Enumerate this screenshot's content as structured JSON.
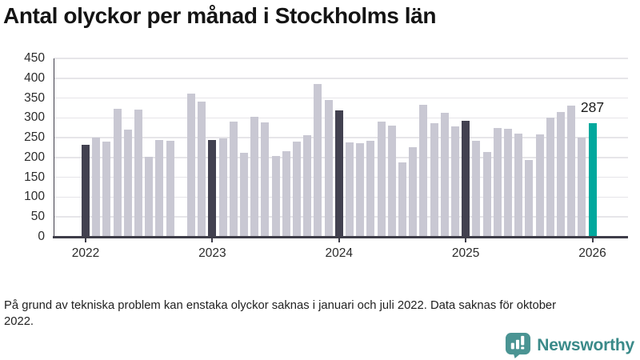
{
  "title": "Antal olyckor per månad i Stockholms län",
  "footnote": "På grund av tekniska problem kan enstaka olyckor saknas i januari och juli 2022. Data saknas för oktober 2022.",
  "branding": {
    "name": "Newsworthy",
    "icon": "newsworthy-bubble-chart-icon",
    "icon_color": "#4a9493",
    "text_color": "#3a8a89"
  },
  "chart_data": {
    "type": "bar",
    "title": "Antal olyckor per månad i Stockholms län",
    "xlabel": "",
    "ylabel": "",
    "ylim": [
      0,
      450
    ],
    "y_ticks": [
      0,
      50,
      100,
      150,
      200,
      250,
      300,
      350,
      400,
      450
    ],
    "x_tick_labels": [
      "2022",
      "2023",
      "2024",
      "2025",
      "2026"
    ],
    "grid": "horizontal",
    "legend": "none",
    "missing_months": [
      "2022-10"
    ],
    "annotation": {
      "text": "287",
      "month_index": 48
    },
    "colors": {
      "default": "#c9c8d3",
      "january": "#424150",
      "highlight": "#00a89d",
      "axis": "#3e3d49",
      "gridline": "#e6e5e9"
    },
    "months": [
      {
        "m": "2022-01",
        "v": 233,
        "role": "january"
      },
      {
        "m": "2022-02",
        "v": 250,
        "role": "default"
      },
      {
        "m": "2022-03",
        "v": 240,
        "role": "default"
      },
      {
        "m": "2022-04",
        "v": 322,
        "role": "default"
      },
      {
        "m": "2022-05",
        "v": 270,
        "role": "default"
      },
      {
        "m": "2022-06",
        "v": 320,
        "role": "default"
      },
      {
        "m": "2022-07",
        "v": 202,
        "role": "default"
      },
      {
        "m": "2022-08",
        "v": 244,
        "role": "default"
      },
      {
        "m": "2022-09",
        "v": 243,
        "role": "default"
      },
      {
        "m": "2022-10",
        "v": null,
        "role": "missing"
      },
      {
        "m": "2022-11",
        "v": 362,
        "role": "default"
      },
      {
        "m": "2022-12",
        "v": 341,
        "role": "default"
      },
      {
        "m": "2023-01",
        "v": 245,
        "role": "january"
      },
      {
        "m": "2023-02",
        "v": 249,
        "role": "default"
      },
      {
        "m": "2023-03",
        "v": 291,
        "role": "default"
      },
      {
        "m": "2023-04",
        "v": 212,
        "role": "default"
      },
      {
        "m": "2023-05",
        "v": 303,
        "role": "default"
      },
      {
        "m": "2023-06",
        "v": 289,
        "role": "default"
      },
      {
        "m": "2023-07",
        "v": 204,
        "role": "default"
      },
      {
        "m": "2023-08",
        "v": 215,
        "role": "default"
      },
      {
        "m": "2023-09",
        "v": 241,
        "role": "default"
      },
      {
        "m": "2023-10",
        "v": 256,
        "role": "default"
      },
      {
        "m": "2023-11",
        "v": 386,
        "role": "default"
      },
      {
        "m": "2023-12",
        "v": 346,
        "role": "default"
      },
      {
        "m": "2024-01",
        "v": 318,
        "role": "january"
      },
      {
        "m": "2024-02",
        "v": 238,
        "role": "default"
      },
      {
        "m": "2024-03",
        "v": 236,
        "role": "default"
      },
      {
        "m": "2024-04",
        "v": 242,
        "role": "default"
      },
      {
        "m": "2024-05",
        "v": 290,
        "role": "default"
      },
      {
        "m": "2024-06",
        "v": 281,
        "role": "default"
      },
      {
        "m": "2024-07",
        "v": 188,
        "role": "default"
      },
      {
        "m": "2024-08",
        "v": 227,
        "role": "default"
      },
      {
        "m": "2024-09",
        "v": 333,
        "role": "default"
      },
      {
        "m": "2024-10",
        "v": 287,
        "role": "default"
      },
      {
        "m": "2024-11",
        "v": 312,
        "role": "default"
      },
      {
        "m": "2024-12",
        "v": 278,
        "role": "default"
      },
      {
        "m": "2025-01",
        "v": 293,
        "role": "january"
      },
      {
        "m": "2025-02",
        "v": 243,
        "role": "default"
      },
      {
        "m": "2025-03",
        "v": 213,
        "role": "default"
      },
      {
        "m": "2025-04",
        "v": 274,
        "role": "default"
      },
      {
        "m": "2025-05",
        "v": 272,
        "role": "default"
      },
      {
        "m": "2025-06",
        "v": 260,
        "role": "default"
      },
      {
        "m": "2025-07",
        "v": 193,
        "role": "default"
      },
      {
        "m": "2025-08",
        "v": 258,
        "role": "default"
      },
      {
        "m": "2025-09",
        "v": 300,
        "role": "default"
      },
      {
        "m": "2025-10",
        "v": 315,
        "role": "default"
      },
      {
        "m": "2025-11",
        "v": 331,
        "role": "default"
      },
      {
        "m": "2025-12",
        "v": 250,
        "role": "default"
      },
      {
        "m": "2026-01",
        "v": 287,
        "role": "highlight"
      }
    ]
  }
}
